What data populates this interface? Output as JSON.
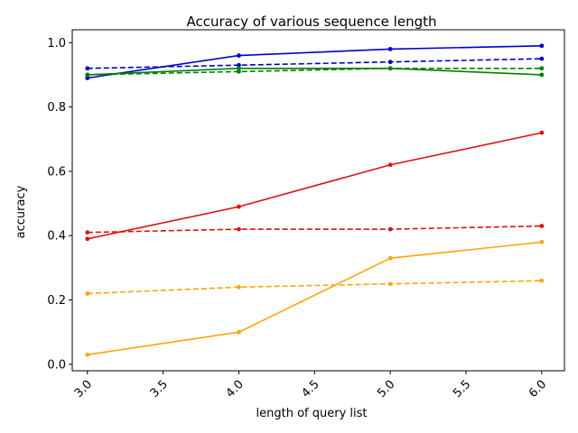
{
  "chart_data": {
    "type": "line",
    "title": "Accuracy of various sequence length",
    "xlabel": "length of query list",
    "ylabel": "accuracy",
    "x": [
      3.0,
      4.0,
      5.0,
      6.0
    ],
    "xlim": [
      2.9,
      6.15
    ],
    "ylim": [
      -0.02,
      1.04
    ],
    "xticks": [
      3.0,
      3.5,
      4.0,
      4.5,
      5.0,
      5.5,
      6.0
    ],
    "xtick_labels": [
      "3.0",
      "3.5",
      "4.0",
      "4.5",
      "5.0",
      "5.5",
      "6.0"
    ],
    "yticks": [
      0.0,
      0.2,
      0.4,
      0.6,
      0.8,
      1.0
    ],
    "ytick_labels": [
      "0.0",
      "0.2",
      "0.4",
      "0.6",
      "0.8",
      "1.0"
    ],
    "xtick_rotation": 45,
    "grid": false,
    "legend": "none",
    "series": [
      {
        "color": "#0000cc",
        "style": "solid",
        "values": [
          0.89,
          0.96,
          0.98,
          0.99
        ]
      },
      {
        "color": "#0000cc",
        "style": "dashed",
        "values": [
          0.92,
          0.93,
          0.94,
          0.95
        ]
      },
      {
        "color": "#008000",
        "style": "solid",
        "values": [
          0.9,
          0.92,
          0.92,
          0.9
        ]
      },
      {
        "color": "#008000",
        "style": "dashed",
        "values": [
          0.9,
          0.91,
          0.92,
          0.92
        ]
      },
      {
        "color": "#dd1111",
        "style": "solid",
        "values": [
          0.39,
          0.49,
          0.62,
          0.72
        ]
      },
      {
        "color": "#dd1111",
        "style": "dashed",
        "values": [
          0.41,
          0.42,
          0.42,
          0.43
        ]
      },
      {
        "color": "#ffa500",
        "style": "solid",
        "values": [
          0.03,
          0.1,
          0.33,
          0.38
        ]
      },
      {
        "color": "#ffa500",
        "style": "dashed",
        "values": [
          0.22,
          0.24,
          0.25,
          0.26
        ]
      }
    ]
  }
}
